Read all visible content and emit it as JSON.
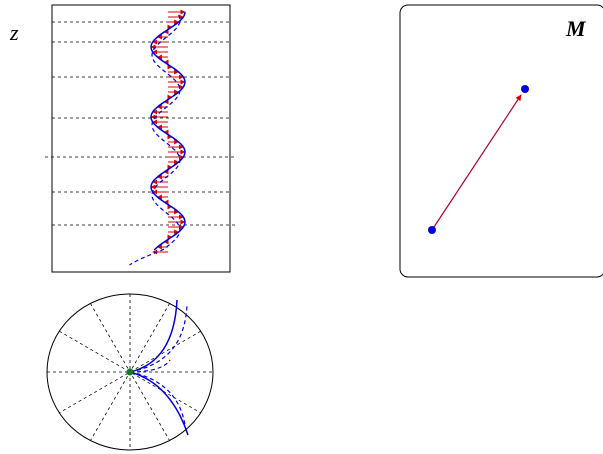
{
  "labels": {
    "z": "z",
    "m": "M"
  }
}
